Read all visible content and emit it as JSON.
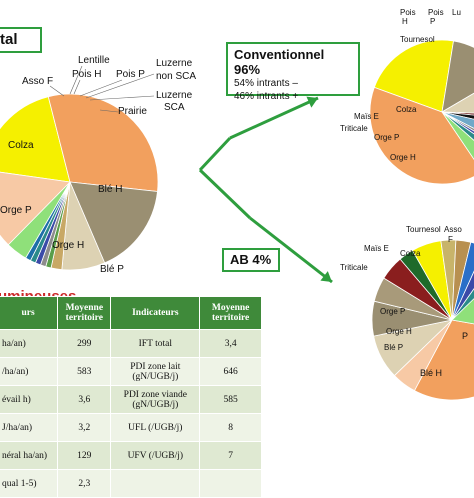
{
  "labels": {
    "total_box": "tal",
    "conv_title": "Conventionnel 96%",
    "conv_line1": "54% intrants –",
    "conv_line2": "46% intrants +",
    "ab_box": "AB 4%",
    "legumineuses": "umineuses"
  },
  "colors": {
    "frame_green": "#2e9e3e",
    "arrow_green": "#2e9e3e",
    "table_header": "#3f8a3a",
    "title_red": "#cc2a2a"
  },
  "chart_data": [
    {
      "type": "pie",
      "name_hint": "total",
      "slices": [
        {
          "label": "Colza",
          "value": 19,
          "color": "#f5f000"
        },
        {
          "label": "Blé H",
          "value": 31,
          "color": "#f2a05e"
        },
        {
          "label": "Orge H",
          "value": 17,
          "color": "#9a8f72"
        },
        {
          "label": "Blé P",
          "value": 0,
          "color": "#dfe0dc"
        },
        {
          "label": "Orge P",
          "value": 8,
          "color": "#ddd2b3"
        },
        {
          "label": "Asso F",
          "value": 2,
          "color": "#c8a865"
        },
        {
          "label": "Lentille",
          "value": 1,
          "color": "#5a9e4a"
        },
        {
          "label": "Pois H",
          "value": 1,
          "color": "#8c8c8c"
        },
        {
          "label": "Pois P",
          "value": 1,
          "color": "#3b4aa8"
        },
        {
          "label": "Luzerne non SCA",
          "value": 1,
          "color": "#2a8a8a"
        },
        {
          "label": "Luzerne SCA",
          "value": 1,
          "color": "#1d6fa8"
        },
        {
          "label": "Prairie",
          "value": 4,
          "color": "#8fe07a"
        },
        {
          "label": "",
          "value": 15,
          "color": "#f7c9a5"
        }
      ],
      "extra_labels": [
        "Blé P"
      ]
    },
    {
      "type": "pie",
      "name_hint": "conventionnel",
      "slices": [
        {
          "label": "Colza",
          "value": 22,
          "color": "#f5f000"
        },
        {
          "label": "Orge H",
          "value": 14,
          "color": "#9a8f72"
        },
        {
          "label": "Orge P",
          "value": 9,
          "color": "#ddd2b3"
        },
        {
          "label": "Triticale",
          "value": 1,
          "color": "#6e1e1e"
        },
        {
          "label": "Maïs E",
          "value": 2,
          "color": "#111111"
        },
        {
          "label": "Tournesol",
          "value": 4,
          "color": "#6fa8c8"
        },
        {
          "label": "Pois H",
          "value": 1,
          "color": "#8c8c8c"
        },
        {
          "label": "Pois P",
          "value": 1,
          "color": "#3b4aa8"
        },
        {
          "label": "Lu",
          "value": 2,
          "color": "#2a8a8a"
        },
        {
          "label": "",
          "value": 4,
          "color": "#8fe07a"
        },
        {
          "label": "",
          "value": 40,
          "color": "#f2a05e"
        }
      ]
    },
    {
      "type": "pie",
      "name_hint": "ab",
      "slices": [
        {
          "label": "Blé H",
          "value": 30,
          "color": "#f2a05e"
        },
        {
          "label": "",
          "value": 5,
          "color": "#f7c9a5"
        },
        {
          "label": "Blé P",
          "value": 9,
          "color": "#ddd2b3"
        },
        {
          "label": "Orge P",
          "value": 7,
          "color": "#9a8f72"
        },
        {
          "label": "Orge H",
          "value": 5,
          "color": "#a89a7a"
        },
        {
          "label": "Triticale",
          "value": 5,
          "color": "#8a1e1e"
        },
        {
          "label": "Maïs E",
          "value": 3,
          "color": "#1f6a2a"
        },
        {
          "label": "Colza",
          "value": 6,
          "color": "#f5f000"
        },
        {
          "label": "Tournesol",
          "value": 3,
          "color": "#c8b46a"
        },
        {
          "label": "Asso F",
          "value": 3,
          "color": "#b89050"
        },
        {
          "label": "",
          "value": 3,
          "color": "#2a6fc8"
        },
        {
          "label": "",
          "value": 3,
          "color": "#3b4aa8"
        },
        {
          "label": "",
          "value": 3,
          "color": "#2a8a8a"
        },
        {
          "label": "P",
          "value": 15,
          "color": "#8fe07a"
        }
      ]
    }
  ],
  "table": {
    "headers": [
      "urs",
      "Moyenne territoire",
      "Indicateurs",
      "Moyenne territoire"
    ],
    "rows": [
      [
        "ha/an)",
        "299",
        "IFT total",
        "3,4"
      ],
      [
        "/ha/an)",
        "583",
        "PDI zone lait (gN/UGB/j)",
        "646"
      ],
      [
        "évail h)",
        "3,6",
        "PDI zone viande (gN/UGB/j)",
        "585"
      ],
      [
        "J/ha/an)",
        "3,2",
        "UFL (/UGB/j)",
        "8"
      ],
      [
        "néral ha/an)",
        "129",
        "UFV (/UGB/j)",
        "7"
      ],
      [
        "qual 1-5)",
        "2,3",
        "",
        ""
      ]
    ]
  }
}
